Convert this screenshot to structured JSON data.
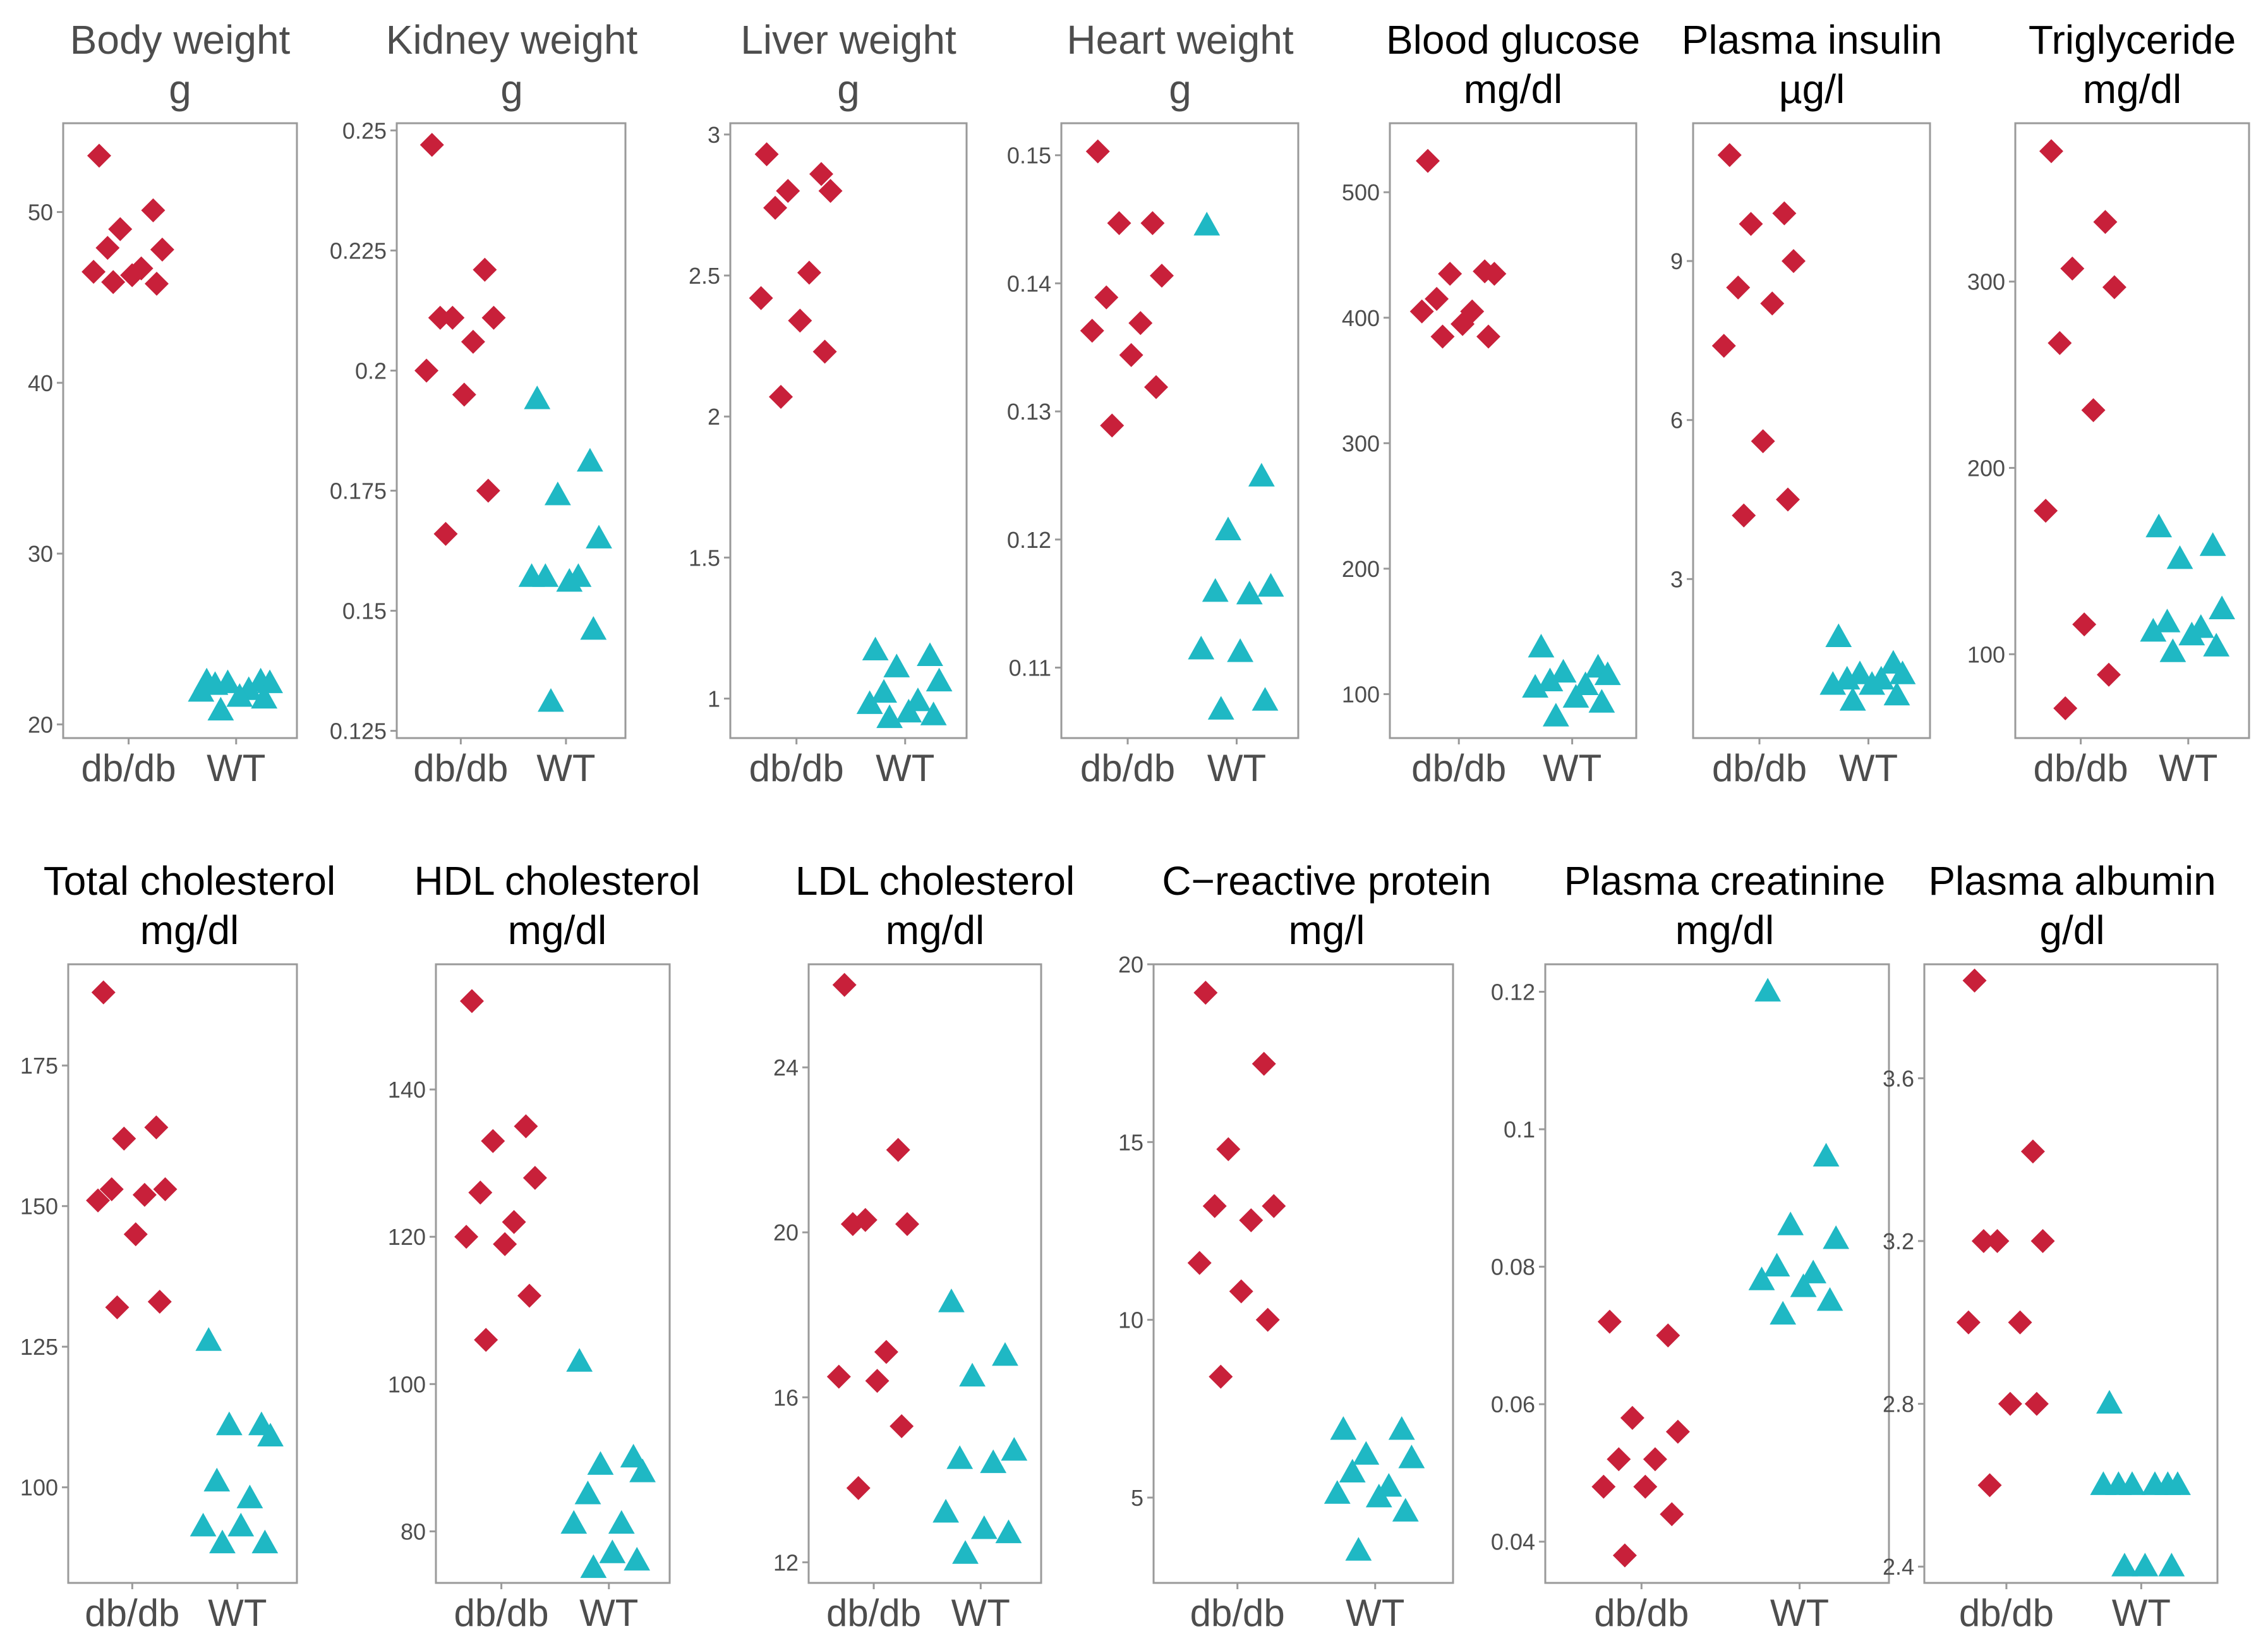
{
  "colors": {
    "dbdb": "#c8203a",
    "wt": "#1fb8c4"
  },
  "markers": {
    "dbdb": "diamond",
    "wt": "triangle"
  },
  "chart_data": [
    {
      "type": "scatter",
      "title": "Body weight",
      "unit": "g",
      "title_color": "grey",
      "categories": [
        "db/db",
        "WT"
      ],
      "ylim": [
        19.2,
        55.2
      ],
      "yticks": [
        20,
        30,
        40,
        50
      ],
      "series": [
        {
          "name": "db/db",
          "values": [
            53.3,
            50.1,
            49.0,
            47.8,
            47.9,
            46.7,
            46.5,
            46.3,
            45.8,
            45.9
          ]
        },
        {
          "name": "WT",
          "values": [
            22.5,
            22.5,
            22.4,
            22.4,
            22.3,
            22.0,
            21.9,
            21.6,
            21.5,
            20.8
          ]
        }
      ]
    },
    {
      "type": "scatter",
      "title": "Kidney weight",
      "unit": "g",
      "title_color": "grey",
      "categories": [
        "db/db",
        "WT"
      ],
      "ylim": [
        0.1235,
        0.2515
      ],
      "yticks": [
        0.125,
        0.15,
        0.175,
        0.2,
        0.225,
        0.25
      ],
      "series": [
        {
          "name": "db/db",
          "values": [
            0.247,
            0.221,
            0.211,
            0.211,
            0.211,
            0.206,
            0.2,
            0.195,
            0.175,
            0.166
          ]
        },
        {
          "name": "WT",
          "values": [
            0.194,
            0.181,
            0.174,
            0.165,
            0.157,
            0.157,
            0.157,
            0.156,
            0.146,
            0.131
          ]
        }
      ]
    },
    {
      "type": "scatter",
      "title": "Liver weight",
      "unit": "g",
      "title_color": "grey",
      "categories": [
        "db/db",
        "WT"
      ],
      "ylim": [
        0.86,
        3.04
      ],
      "yticks": [
        1.0,
        1.5,
        2.0,
        2.5,
        3.0
      ],
      "series": [
        {
          "name": "db/db",
          "values": [
            2.93,
            2.86,
            2.8,
            2.8,
            2.74,
            2.51,
            2.42,
            2.34,
            2.23,
            2.07
          ]
        },
        {
          "name": "WT",
          "values": [
            1.17,
            1.15,
            1.11,
            1.06,
            1.02,
            0.99,
            0.98,
            0.95,
            0.94,
            0.93
          ]
        }
      ]
    },
    {
      "type": "scatter",
      "title": "Heart weight",
      "unit": "g",
      "title_color": "grey",
      "categories": [
        "db/db",
        "WT"
      ],
      "ylim": [
        0.1045,
        0.1525
      ],
      "yticks": [
        0.11,
        0.12,
        0.13,
        0.14,
        0.15
      ],
      "series": [
        {
          "name": "db/db",
          "values": [
            0.1503,
            0.1447,
            0.1447,
            0.1406,
            0.1389,
            0.1369,
            0.1363,
            0.1344,
            0.1319,
            0.1289
          ]
        },
        {
          "name": "WT",
          "values": [
            0.1445,
            0.1249,
            0.1207,
            0.1163,
            0.1159,
            0.1157,
            0.1114,
            0.1112,
            0.1074,
            0.1067
          ]
        }
      ]
    },
    {
      "type": "scatter",
      "title": "Blood glucose",
      "unit": "mg/dl",
      "title_color": "black",
      "categories": [
        "db/db",
        "WT"
      ],
      "ylim": [
        65,
        555
      ],
      "yticks": [
        100,
        200,
        300,
        400,
        500
      ],
      "series": [
        {
          "name": "db/db",
          "values": [
            525,
            437,
            435,
            435,
            415,
            405,
            405,
            395,
            385,
            385
          ]
        },
        {
          "name": "WT",
          "values": [
            137,
            121,
            117,
            115,
            110,
            107,
            105,
            97,
            93,
            82
          ]
        }
      ]
    },
    {
      "type": "scatter",
      "title": "Plasma insulin",
      "unit": "µg/l",
      "title_color": "black",
      "categories": [
        "db/db",
        "WT"
      ],
      "ylim": [
        0.0,
        11.6
      ],
      "yticks": [
        3,
        6,
        9
      ],
      "series": [
        {
          "name": "db/db",
          "values": [
            11.0,
            9.9,
            9.7,
            9.0,
            8.5,
            8.2,
            7.4,
            5.6,
            4.5,
            4.2
          ]
        },
        {
          "name": "WT",
          "values": [
            1.9,
            1.4,
            1.2,
            1.2,
            1.1,
            1.1,
            1.0,
            1.0,
            0.8,
            0.7
          ]
        }
      ]
    },
    {
      "type": "scatter",
      "title": "Triglyceride",
      "unit": "mg/dl",
      "title_color": "black",
      "categories": [
        "db/db",
        "WT"
      ],
      "ylim": [
        55,
        385
      ],
      "yticks": [
        100,
        200,
        300
      ],
      "series": [
        {
          "name": "db/db",
          "values": [
            370,
            332,
            307,
            297,
            267,
            231,
            177,
            116,
            89,
            71
          ]
        },
        {
          "name": "WT",
          "values": [
            168,
            158,
            151,
            124,
            117,
            114,
            112,
            110,
            104,
            101
          ]
        }
      ]
    },
    {
      "type": "scatter",
      "title": "Total cholesterol",
      "unit": "mg/dl",
      "title_color": "black",
      "categories": [
        "db/db",
        "WT"
      ],
      "ylim": [
        83,
        193
      ],
      "yticks": [
        100,
        125,
        150,
        175
      ],
      "series": [
        {
          "name": "db/db",
          "values": [
            188,
            164,
            162,
            153,
            153,
            152,
            151,
            145,
            133,
            132
          ]
        },
        {
          "name": "WT",
          "values": [
            126,
            111,
            111,
            109,
            101,
            98,
            93,
            93,
            90,
            90
          ]
        }
      ]
    },
    {
      "type": "scatter",
      "title": "HDL cholesterol",
      "unit": "mg/dl",
      "title_color": "black",
      "categories": [
        "db/db",
        "WT"
      ],
      "ylim": [
        73,
        157
      ],
      "yticks": [
        80,
        100,
        120,
        140
      ],
      "series": [
        {
          "name": "db/db",
          "values": [
            152,
            135,
            133,
            128,
            126,
            122,
            120,
            119,
            112,
            106
          ]
        },
        {
          "name": "WT",
          "values": [
            103,
            90,
            89,
            88,
            85,
            81,
            81,
            77,
            76,
            75
          ]
        }
      ]
    },
    {
      "type": "scatter",
      "title": "LDL cholesterol",
      "unit": "mg/dl",
      "title_color": "black",
      "categories": [
        "db/db",
        "WT"
      ],
      "ylim": [
        11.5,
        26.5
      ],
      "yticks": [
        12,
        16,
        20,
        24
      ],
      "series": [
        {
          "name": "db/db",
          "values": [
            26.0,
            22.0,
            20.3,
            20.2,
            20.2,
            17.1,
            16.5,
            16.4,
            15.3,
            13.8
          ]
        },
        {
          "name": "WT",
          "values": [
            18.3,
            17.0,
            16.5,
            14.7,
            14.5,
            14.4,
            13.2,
            12.8,
            12.7,
            12.2
          ]
        }
      ]
    },
    {
      "type": "scatter",
      "title": "C−reactive protein",
      "unit": "mg/l",
      "title_color": "black",
      "categories": [
        "db/db",
        "WT"
      ],
      "ylim": [
        2.6,
        20.0
      ],
      "yticks": [
        5,
        10,
        15,
        20
      ],
      "series": [
        {
          "name": "db/db",
          "values": [
            19.2,
            17.2,
            14.8,
            13.2,
            13.2,
            12.8,
            11.6,
            10.8,
            10.0,
            8.4
          ]
        },
        {
          "name": "WT",
          "values": [
            6.9,
            6.9,
            6.2,
            6.1,
            5.7,
            5.3,
            5.1,
            5.0,
            4.6,
            3.5
          ]
        }
      ]
    },
    {
      "type": "scatter",
      "title": "Plasma creatinine",
      "unit": "mg/dl",
      "title_color": "black",
      "categories": [
        "db/db",
        "WT"
      ],
      "ylim": [
        0.034,
        0.124
      ],
      "yticks": [
        0.04,
        0.06,
        0.08,
        0.1,
        0.12
      ],
      "series": [
        {
          "name": "db/db",
          "values": [
            0.072,
            0.07,
            0.058,
            0.056,
            0.052,
            0.052,
            0.048,
            0.048,
            0.044,
            0.038
          ]
        },
        {
          "name": "WT",
          "values": [
            0.12,
            0.096,
            0.086,
            0.084,
            0.08,
            0.079,
            0.078,
            0.077,
            0.075,
            0.073
          ]
        }
      ]
    },
    {
      "type": "scatter",
      "title": "Plasma albumin",
      "unit": "g/dl",
      "title_color": "black",
      "categories": [
        "db/db",
        "WT"
      ],
      "ylim": [
        2.36,
        3.88
      ],
      "yticks": [
        2.4,
        2.8,
        3.2,
        3.6
      ],
      "series": [
        {
          "name": "db/db",
          "values": [
            3.84,
            3.42,
            3.2,
            3.2,
            3.2,
            3.0,
            3.0,
            2.8,
            2.8,
            2.6
          ]
        },
        {
          "name": "WT",
          "values": [
            2.8,
            2.6,
            2.6,
            2.6,
            2.6,
            2.6,
            2.6,
            2.4,
            2.4,
            2.4
          ]
        }
      ]
    }
  ]
}
